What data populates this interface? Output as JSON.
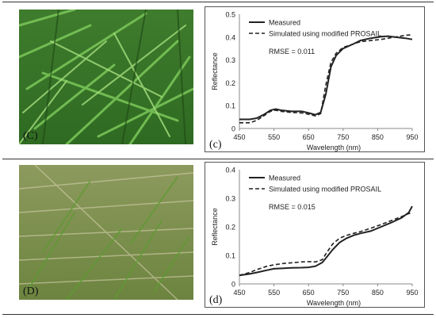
{
  "photos": [
    {
      "label": "(C)",
      "description_color_top": "#3d7a2c",
      "description_color_bottom": "#4f8f3a"
    },
    {
      "label": "(D)",
      "description_color_top": "#8b9a5a",
      "description_color_bottom": "#6f8a3e"
    }
  ],
  "chart_data": [
    {
      "type": "line",
      "panel_label": "(c)",
      "xlabel": "Wavelength (nm)",
      "ylabel": "Reflectance",
      "xlim": [
        450,
        950
      ],
      "ylim": [
        0,
        0.5
      ],
      "xticks": [
        450,
        550,
        650,
        750,
        850,
        950
      ],
      "yticks": [
        0,
        0.1,
        0.2,
        0.3,
        0.4,
        0.5
      ],
      "ytick_labels": [
        "0",
        "0.1",
        "0.2",
        "0.3",
        "0.4",
        "0.5"
      ],
      "legend": [
        "Measured",
        "Simulated using modified PROSAIL"
      ],
      "annotation": "RMSE = 0.011",
      "series": [
        {
          "name": "Measured",
          "style": "solid",
          "x": [
            450,
            480,
            500,
            520,
            540,
            555,
            570,
            600,
            630,
            650,
            670,
            685,
            700,
            715,
            730,
            750,
            780,
            800,
            830,
            860,
            880,
            900,
            930,
            950
          ],
          "y": [
            0.04,
            0.04,
            0.045,
            0.06,
            0.08,
            0.085,
            0.08,
            0.075,
            0.075,
            0.068,
            0.06,
            0.07,
            0.15,
            0.27,
            0.32,
            0.35,
            0.37,
            0.385,
            0.395,
            0.402,
            0.404,
            0.4,
            0.395,
            0.39
          ]
        },
        {
          "name": "Simulated using modified PROSAIL",
          "style": "dashed",
          "x": [
            450,
            480,
            500,
            520,
            540,
            555,
            570,
            600,
            630,
            650,
            670,
            685,
            700,
            715,
            730,
            750,
            780,
            800,
            830,
            860,
            880,
            900,
            930,
            950
          ],
          "y": [
            0.025,
            0.025,
            0.035,
            0.055,
            0.075,
            0.08,
            0.075,
            0.07,
            0.068,
            0.062,
            0.055,
            0.065,
            0.19,
            0.29,
            0.33,
            0.355,
            0.37,
            0.38,
            0.385,
            0.39,
            0.395,
            0.4,
            0.408,
            0.41
          ]
        }
      ]
    },
    {
      "type": "line",
      "panel_label": "(d)",
      "xlabel": "Wavelength (nm)",
      "ylabel": "Reflectance",
      "xlim": [
        450,
        950
      ],
      "ylim": [
        0,
        0.4
      ],
      "xticks": [
        450,
        550,
        650,
        750,
        850,
        950
      ],
      "yticks": [
        0,
        0.1,
        0.2,
        0.3,
        0.4
      ],
      "ytick_labels": [
        "0",
        "0.1",
        "0.2",
        "0.3",
        "0.4"
      ],
      "legend": [
        "Measured",
        "Simulated using modified PROSAIL"
      ],
      "annotation": "RMSE = 0.015",
      "series": [
        {
          "name": "Measured",
          "style": "solid",
          "x": [
            450,
            480,
            500,
            530,
            550,
            580,
            600,
            630,
            650,
            670,
            690,
            700,
            720,
            740,
            760,
            780,
            800,
            830,
            860,
            890,
            920,
            940,
            950
          ],
          "y": [
            0.03,
            0.035,
            0.04,
            0.048,
            0.053,
            0.055,
            0.056,
            0.057,
            0.058,
            0.062,
            0.075,
            0.09,
            0.12,
            0.145,
            0.16,
            0.17,
            0.177,
            0.185,
            0.2,
            0.215,
            0.232,
            0.25,
            0.272
          ]
        },
        {
          "name": "Simulated using modified PROSAIL",
          "style": "dashed",
          "x": [
            450,
            480,
            500,
            530,
            550,
            580,
            600,
            630,
            650,
            670,
            690,
            700,
            720,
            740,
            760,
            780,
            800,
            830,
            860,
            890,
            920,
            940,
            950
          ],
          "y": [
            0.03,
            0.04,
            0.05,
            0.062,
            0.067,
            0.072,
            0.074,
            0.077,
            0.078,
            0.077,
            0.085,
            0.105,
            0.14,
            0.16,
            0.17,
            0.177,
            0.183,
            0.195,
            0.208,
            0.222,
            0.236,
            0.246,
            0.25
          ]
        }
      ]
    }
  ]
}
